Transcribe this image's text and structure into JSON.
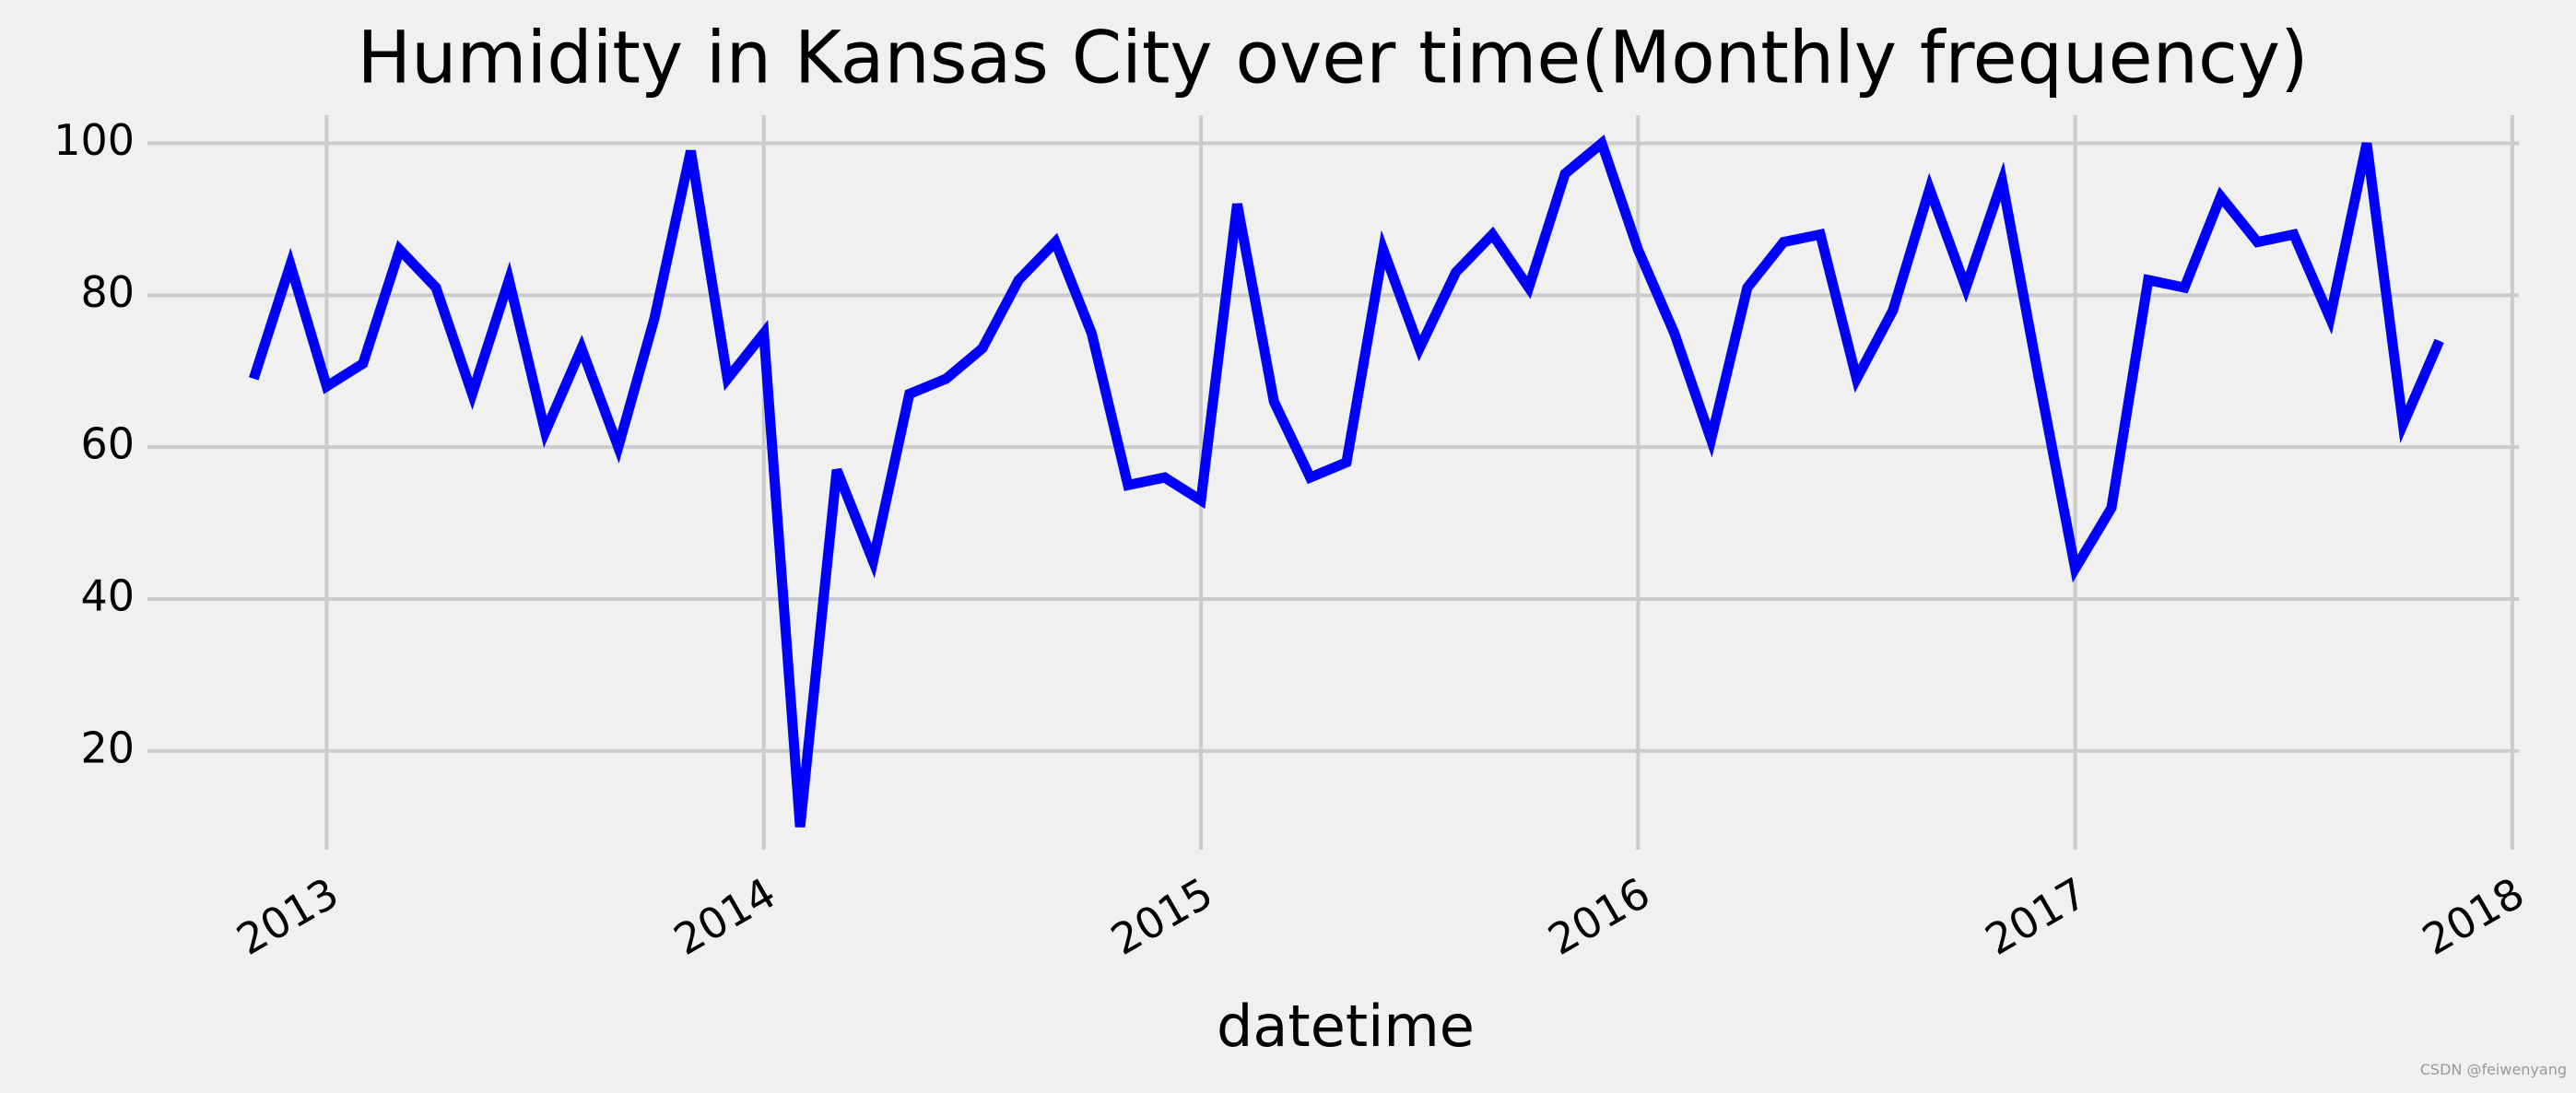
{
  "chart_data": {
    "type": "line",
    "title": "Humidity in Kansas City over time(Monthly frequency)",
    "xlabel": "datetime",
    "watermark": "CSDN @feiwenyang",
    "x": [
      2012.833,
      2012.917,
      2013.0,
      2013.083,
      2013.167,
      2013.25,
      2013.333,
      2013.417,
      2013.5,
      2013.583,
      2013.667,
      2013.75,
      2013.833,
      2013.917,
      2014.0,
      2014.083,
      2014.167,
      2014.25,
      2014.333,
      2014.417,
      2014.5,
      2014.583,
      2014.667,
      2014.75,
      2014.833,
      2014.917,
      2015.0,
      2015.083,
      2015.167,
      2015.25,
      2015.333,
      2015.417,
      2015.5,
      2015.583,
      2015.667,
      2015.75,
      2015.833,
      2015.917,
      2016.0,
      2016.083,
      2016.167,
      2016.25,
      2016.333,
      2016.417,
      2016.5,
      2016.583,
      2016.667,
      2016.75,
      2016.833,
      2016.917,
      2017.0,
      2017.083,
      2017.167,
      2017.25,
      2017.333,
      2017.417,
      2017.5,
      2017.583,
      2017.667,
      2017.75,
      2017.833
    ],
    "series": [
      {
        "name": "humidity",
        "color": "#0000ff",
        "values": [
          69,
          84,
          68,
          71,
          86,
          81,
          67,
          82,
          62,
          73,
          60,
          77,
          99,
          69,
          75,
          10,
          57,
          45,
          67,
          69,
          73,
          82,
          87,
          75,
          55,
          56,
          53,
          92,
          66,
          56,
          58,
          86,
          73,
          83,
          88,
          81,
          96,
          100,
          86,
          75,
          61,
          81,
          87,
          88,
          69,
          78,
          94,
          81,
          95,
          69,
          44,
          52,
          82,
          81,
          93,
          87,
          88,
          77,
          100,
          63,
          74
        ]
      }
    ],
    "xlim": [
      2012.59,
      2018.015
    ],
    "xticks": [
      2013,
      2014,
      2015,
      2016,
      2017,
      2018
    ],
    "ylim": [
      7,
      103.7
    ],
    "yticks": [
      20,
      40,
      60,
      80,
      100
    ],
    "grid": true
  }
}
